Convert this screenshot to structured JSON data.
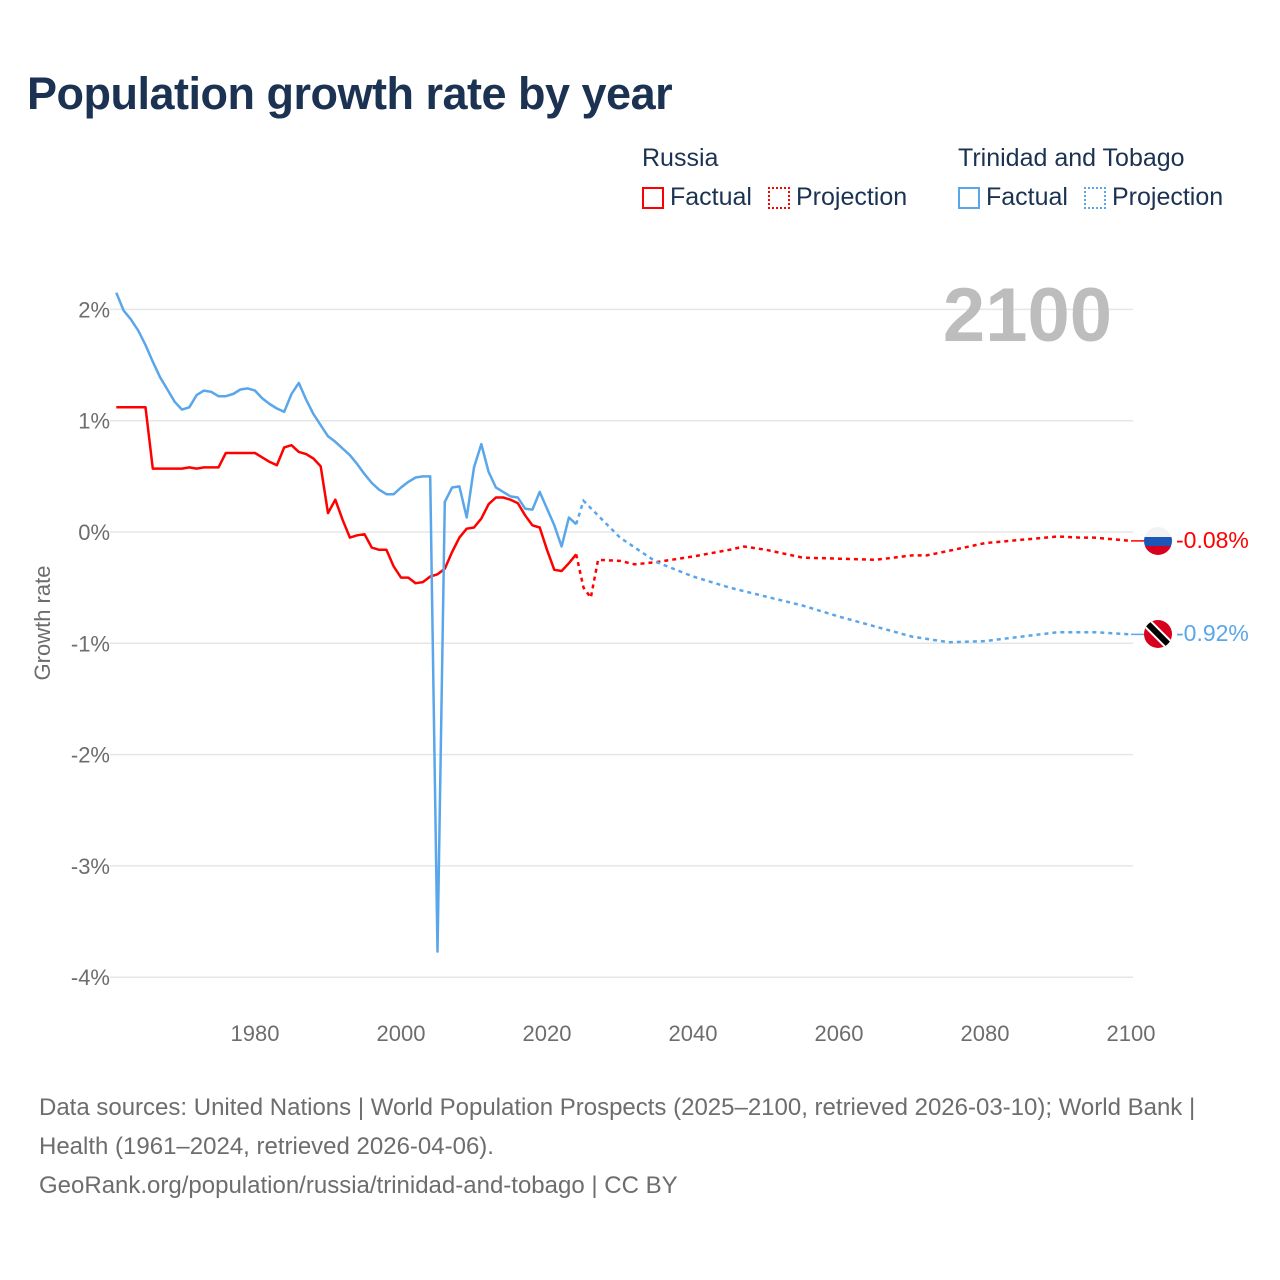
{
  "title": "Population growth rate by year",
  "legend": {
    "groups": [
      {
        "name": "Russia",
        "color": "#ff0000",
        "factual_label": "Factual",
        "projection_label": "Projection"
      },
      {
        "name": "Trinidad and Tobago",
        "color": "#5aa6ea",
        "factual_label": "Factual",
        "projection_label": "Projection"
      }
    ]
  },
  "year_badge": "2100",
  "footer": {
    "sources": "Data sources: United Nations | World Population Prospects (2025–2100, retrieved 2026-03-10); World Bank | Health (1961–2024, retrieved 2026-04-06).",
    "credit": "GeoRank.org/population/russia/trinidad-and-tobago | CC BY"
  },
  "chart_data": {
    "type": "line",
    "title": "Population growth rate by year",
    "xlabel": "",
    "ylabel": "Growth rate",
    "xlim": [
      1961,
      2100
    ],
    "ylim": [
      -4.2,
      2.2
    ],
    "xticks": [
      1980,
      2000,
      2020,
      2040,
      2060,
      2080,
      2100
    ],
    "xtick_labels": [
      "1980",
      "2000",
      "2020",
      "2040",
      "2060",
      "2080",
      "2100"
    ],
    "yticks": [
      2,
      1,
      0,
      -1,
      -2,
      -3,
      -4
    ],
    "ytick_labels": [
      "2%",
      "1%",
      "0%",
      "-1%",
      "-2%",
      "-3%",
      "-4%"
    ],
    "grid": true,
    "legend_position": "top-right",
    "series": [
      {
        "name": "Russia",
        "color": "#ff0000",
        "end_label": "-0.08%",
        "flag": "russia-flag",
        "factual": {
          "x": [
            1961,
            1962,
            1963,
            1964,
            1965,
            1966,
            1967,
            1968,
            1969,
            1970,
            1971,
            1972,
            1973,
            1974,
            1975,
            1976,
            1977,
            1978,
            1979,
            1980,
            1981,
            1982,
            1983,
            1984,
            1985,
            1986,
            1987,
            1988,
            1989,
            1990,
            1991,
            1992,
            1993,
            1994,
            1995,
            1996,
            1997,
            1998,
            1999,
            2000,
            2001,
            2002,
            2003,
            2004,
            2005,
            2006,
            2007,
            2008,
            2009,
            2010,
            2011,
            2012,
            2013,
            2014,
            2015,
            2016,
            2017,
            2018,
            2019,
            2020,
            2021,
            2022,
            2023,
            2024
          ],
          "y": [
            1.12,
            1.12,
            1.12,
            1.12,
            1.12,
            0.57,
            0.57,
            0.57,
            0.57,
            0.57,
            0.58,
            0.57,
            0.58,
            0.58,
            0.58,
            0.71,
            0.71,
            0.71,
            0.71,
            0.71,
            0.67,
            0.63,
            0.6,
            0.76,
            0.78,
            0.72,
            0.7,
            0.66,
            0.59,
            0.17,
            0.29,
            0.11,
            -0.05,
            -0.03,
            -0.02,
            -0.14,
            -0.16,
            -0.16,
            -0.31,
            -0.41,
            -0.41,
            -0.46,
            -0.45,
            -0.4,
            -0.38,
            -0.33,
            -0.18,
            -0.05,
            0.03,
            0.04,
            0.12,
            0.25,
            0.31,
            0.31,
            0.29,
            0.26,
            0.15,
            0.06,
            0.04,
            -0.16,
            -0.34,
            -0.35,
            -0.28,
            -0.2
          ]
        },
        "projection": {
          "x": [
            2024,
            2025,
            2026,
            2027,
            2030,
            2032,
            2035,
            2040,
            2045,
            2047,
            2050,
            2055,
            2060,
            2065,
            2070,
            2072,
            2075,
            2080,
            2085,
            2090,
            2093,
            2095,
            2100
          ],
          "y": [
            -0.2,
            -0.5,
            -0.59,
            -0.25,
            -0.26,
            -0.29,
            -0.27,
            -0.22,
            -0.16,
            -0.13,
            -0.16,
            -0.23,
            -0.24,
            -0.25,
            -0.21,
            -0.21,
            -0.17,
            -0.1,
            -0.07,
            -0.04,
            -0.05,
            -0.05,
            -0.08
          ]
        }
      },
      {
        "name": "Trinidad and Tobago",
        "color": "#5aa6ea",
        "end_label": "-0.92%",
        "flag": "trinidad-and-tobago-flag",
        "factual": {
          "x": [
            1961,
            1962,
            1963,
            1964,
            1965,
            1966,
            1967,
            1968,
            1969,
            1970,
            1971,
            1972,
            1973,
            1974,
            1975,
            1976,
            1977,
            1978,
            1979,
            1980,
            1981,
            1982,
            1983,
            1984,
            1985,
            1986,
            1987,
            1988,
            1989,
            1990,
            1991,
            1992,
            1993,
            1994,
            1995,
            1996,
            1997,
            1998,
            1999,
            2000,
            2001,
            2002,
            2003,
            2004,
            2005,
            2006,
            2007,
            2008,
            2009,
            2010,
            2011,
            2012,
            2013,
            2014,
            2015,
            2016,
            2017,
            2018,
            2019,
            2020,
            2021,
            2022,
            2023,
            2024
          ],
          "y": [
            2.15,
            1.99,
            1.91,
            1.81,
            1.68,
            1.53,
            1.39,
            1.28,
            1.17,
            1.1,
            1.12,
            1.23,
            1.27,
            1.26,
            1.22,
            1.22,
            1.24,
            1.28,
            1.29,
            1.27,
            1.2,
            1.15,
            1.11,
            1.08,
            1.24,
            1.34,
            1.19,
            1.06,
            0.96,
            0.86,
            0.81,
            0.75,
            0.69,
            0.61,
            0.52,
            0.44,
            0.38,
            0.34,
            0.34,
            0.4,
            0.45,
            0.49,
            0.5,
            0.5,
            -3.77,
            0.27,
            0.4,
            0.41,
            0.13,
            0.58,
            0.79,
            0.54,
            0.4,
            0.36,
            0.32,
            0.31,
            0.21,
            0.2,
            0.36,
            0.21,
            0.06,
            -0.13,
            0.13,
            0.07
          ]
        },
        "projection": {
          "x": [
            2024,
            2025,
            2030,
            2035,
            2040,
            2045,
            2050,
            2055,
            2060,
            2065,
            2070,
            2075,
            2080,
            2085,
            2090,
            2095,
            2100
          ],
          "y": [
            0.07,
            0.28,
            -0.05,
            -0.27,
            -0.4,
            -0.5,
            -0.58,
            -0.66,
            -0.76,
            -0.85,
            -0.94,
            -0.99,
            -0.98,
            -0.94,
            -0.9,
            -0.9,
            -0.92
          ]
        }
      }
    ]
  }
}
